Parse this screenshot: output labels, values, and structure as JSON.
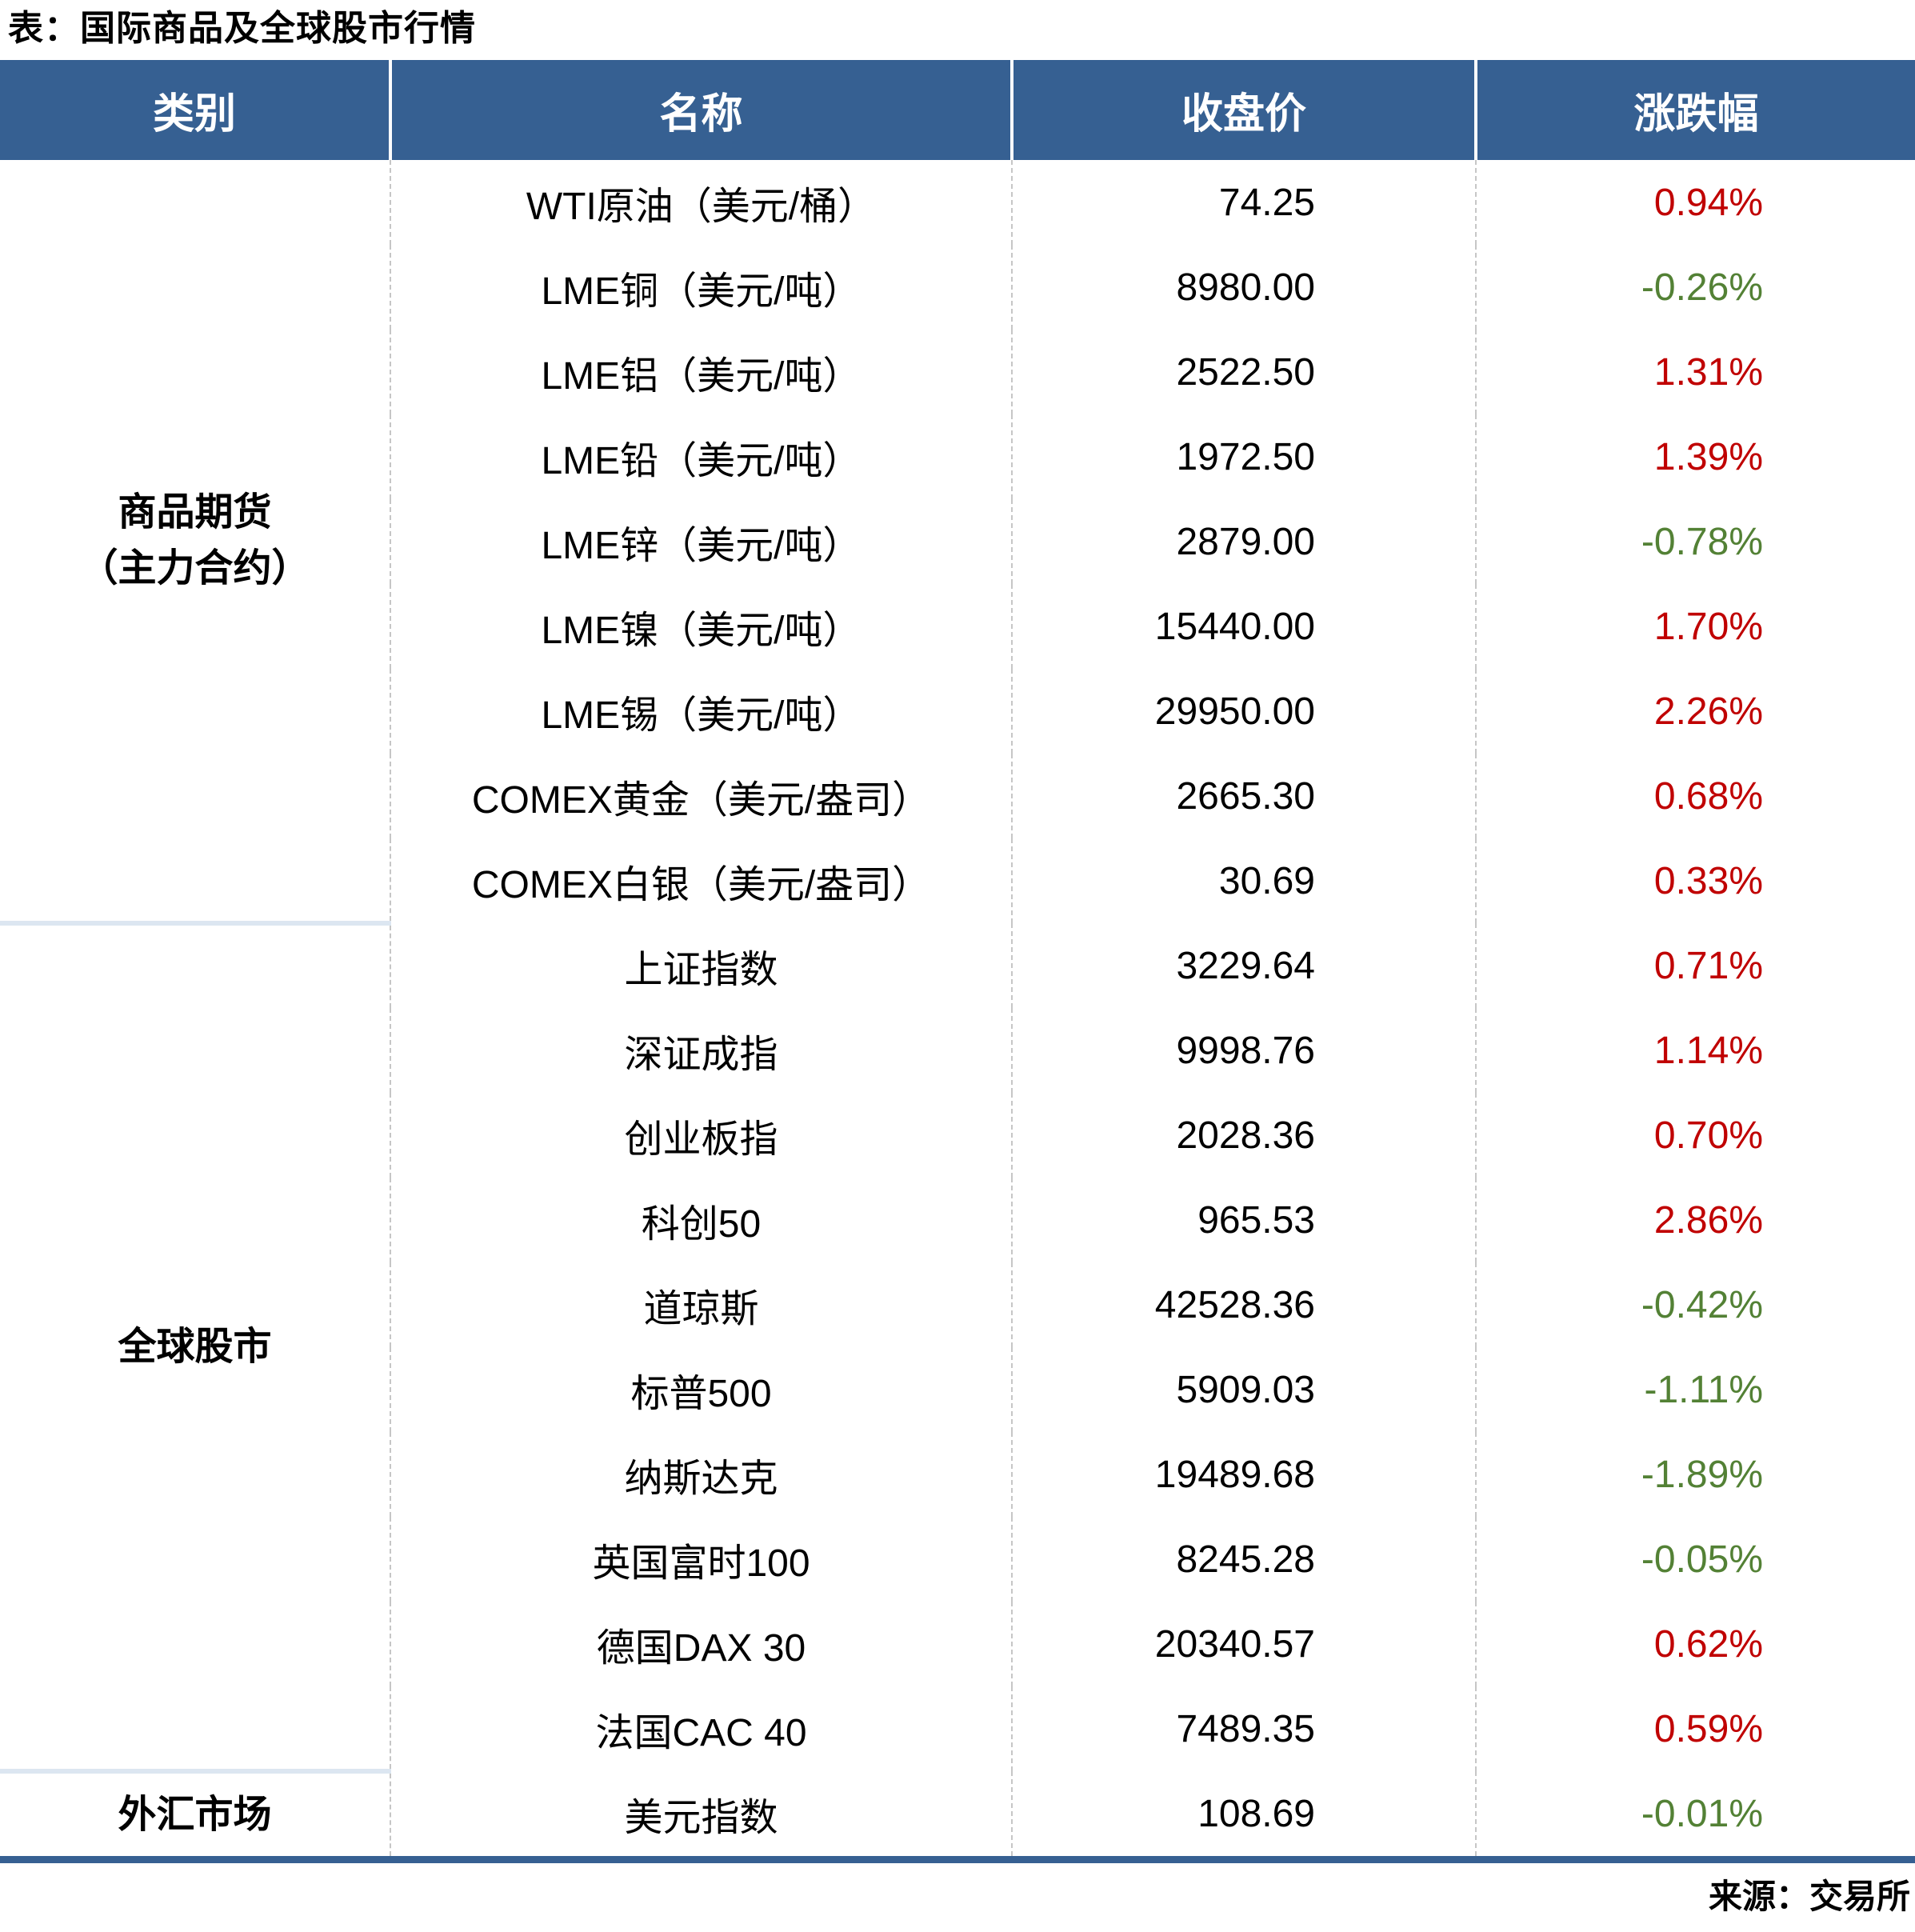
{
  "title": "表：国际商品及全球股市行情",
  "source_note": "来源：交易所",
  "colors": {
    "header_bg": "#366092",
    "stripe_bg": "#dce6f1",
    "up": "#c00000",
    "down": "#538135"
  },
  "table": {
    "columns": [
      "类别",
      "名称",
      "收盘价",
      "涨跌幅"
    ],
    "sections": [
      {
        "category": "商品期货\n（主力合约）",
        "rows": [
          {
            "name": "WTI原油（美元/桶）",
            "close": "74.25",
            "change": "0.94%",
            "direction": "up"
          },
          {
            "name": "LME铜（美元/吨）",
            "close": "8980.00",
            "change": "-0.26%",
            "direction": "down"
          },
          {
            "name": "LME铝（美元/吨）",
            "close": "2522.50",
            "change": "1.31%",
            "direction": "up"
          },
          {
            "name": "LME铅（美元/吨）",
            "close": "1972.50",
            "change": "1.39%",
            "direction": "up"
          },
          {
            "name": "LME锌（美元/吨）",
            "close": "2879.00",
            "change": "-0.78%",
            "direction": "down"
          },
          {
            "name": "LME镍（美元/吨）",
            "close": "15440.00",
            "change": "1.70%",
            "direction": "up"
          },
          {
            "name": "LME锡（美元/吨）",
            "close": "29950.00",
            "change": "2.26%",
            "direction": "up"
          },
          {
            "name": "COMEX黄金（美元/盎司）",
            "close": "2665.30",
            "change": "0.68%",
            "direction": "up"
          },
          {
            "name": "COMEX白银（美元/盎司）",
            "close": "30.69",
            "change": "0.33%",
            "direction": "up"
          }
        ]
      },
      {
        "category": "全球股市",
        "rows": [
          {
            "name": "上证指数",
            "close": "3229.64",
            "change": "0.71%",
            "direction": "up"
          },
          {
            "name": "深证成指",
            "close": "9998.76",
            "change": "1.14%",
            "direction": "up"
          },
          {
            "name": "创业板指",
            "close": "2028.36",
            "change": "0.70%",
            "direction": "up"
          },
          {
            "name": "科创50",
            "close": "965.53",
            "change": "2.86%",
            "direction": "up"
          },
          {
            "name": "道琼斯",
            "close": "42528.36",
            "change": "-0.42%",
            "direction": "down"
          },
          {
            "name": "标普500",
            "close": "5909.03",
            "change": "-1.11%",
            "direction": "down"
          },
          {
            "name": "纳斯达克",
            "close": "19489.68",
            "change": "-1.89%",
            "direction": "down"
          },
          {
            "name": "英国富时100",
            "close": "8245.28",
            "change": "-0.05%",
            "direction": "down"
          },
          {
            "name": "德国DAX 30",
            "close": "20340.57",
            "change": "0.62%",
            "direction": "up"
          },
          {
            "name": "法国CAC 40",
            "close": "7489.35",
            "change": "0.59%",
            "direction": "up"
          }
        ]
      },
      {
        "category": "外汇市场",
        "rows": [
          {
            "name": "美元指数",
            "close": "108.69",
            "change": "-0.01%",
            "direction": "down"
          }
        ]
      }
    ]
  },
  "chart_data": {
    "type": "table",
    "title": "表：国际商品及全球股市行情",
    "columns": [
      "类别",
      "名称",
      "收盘价",
      "涨跌幅"
    ],
    "rows": [
      [
        "商品期货（主力合约）",
        "WTI原油（美元/桶）",
        74.25,
        0.94
      ],
      [
        "商品期货（主力合约）",
        "LME铜（美元/吨）",
        8980.0,
        -0.26
      ],
      [
        "商品期货（主力合约）",
        "LME铝（美元/吨）",
        2522.5,
        1.31
      ],
      [
        "商品期货（主力合约）",
        "LME铅（美元/吨）",
        1972.5,
        1.39
      ],
      [
        "商品期货（主力合约）",
        "LME锌（美元/吨）",
        2879.0,
        -0.78
      ],
      [
        "商品期货（主力合约）",
        "LME镍（美元/吨）",
        15440.0,
        1.7
      ],
      [
        "商品期货（主力合约）",
        "LME锡（美元/吨）",
        29950.0,
        2.26
      ],
      [
        "商品期货（主力合约）",
        "COMEX黄金（美元/盎司）",
        2665.3,
        0.68
      ],
      [
        "商品期货（主力合约）",
        "COMEX白银（美元/盎司）",
        30.69,
        0.33
      ],
      [
        "全球股市",
        "上证指数",
        3229.64,
        0.71
      ],
      [
        "全球股市",
        "深证成指",
        9998.76,
        1.14
      ],
      [
        "全球股市",
        "创业板指",
        2028.36,
        0.7
      ],
      [
        "全球股市",
        "科创50",
        965.53,
        2.86
      ],
      [
        "全球股市",
        "道琼斯",
        42528.36,
        -0.42
      ],
      [
        "全球股市",
        "标普500",
        5909.03,
        -1.11
      ],
      [
        "全球股市",
        "纳斯达克",
        19489.68,
        -1.89
      ],
      [
        "全球股市",
        "英国富时100",
        8245.28,
        -0.05
      ],
      [
        "全球股市",
        "德国DAX 30",
        20340.57,
        0.62
      ],
      [
        "全球股市",
        "法国CAC 40",
        7489.35,
        0.59
      ],
      [
        "外汇市场",
        "美元指数",
        108.69,
        -0.01
      ]
    ],
    "change_unit": "%",
    "up_color_convention": "红涨绿跌",
    "source": "来源：交易所"
  }
}
